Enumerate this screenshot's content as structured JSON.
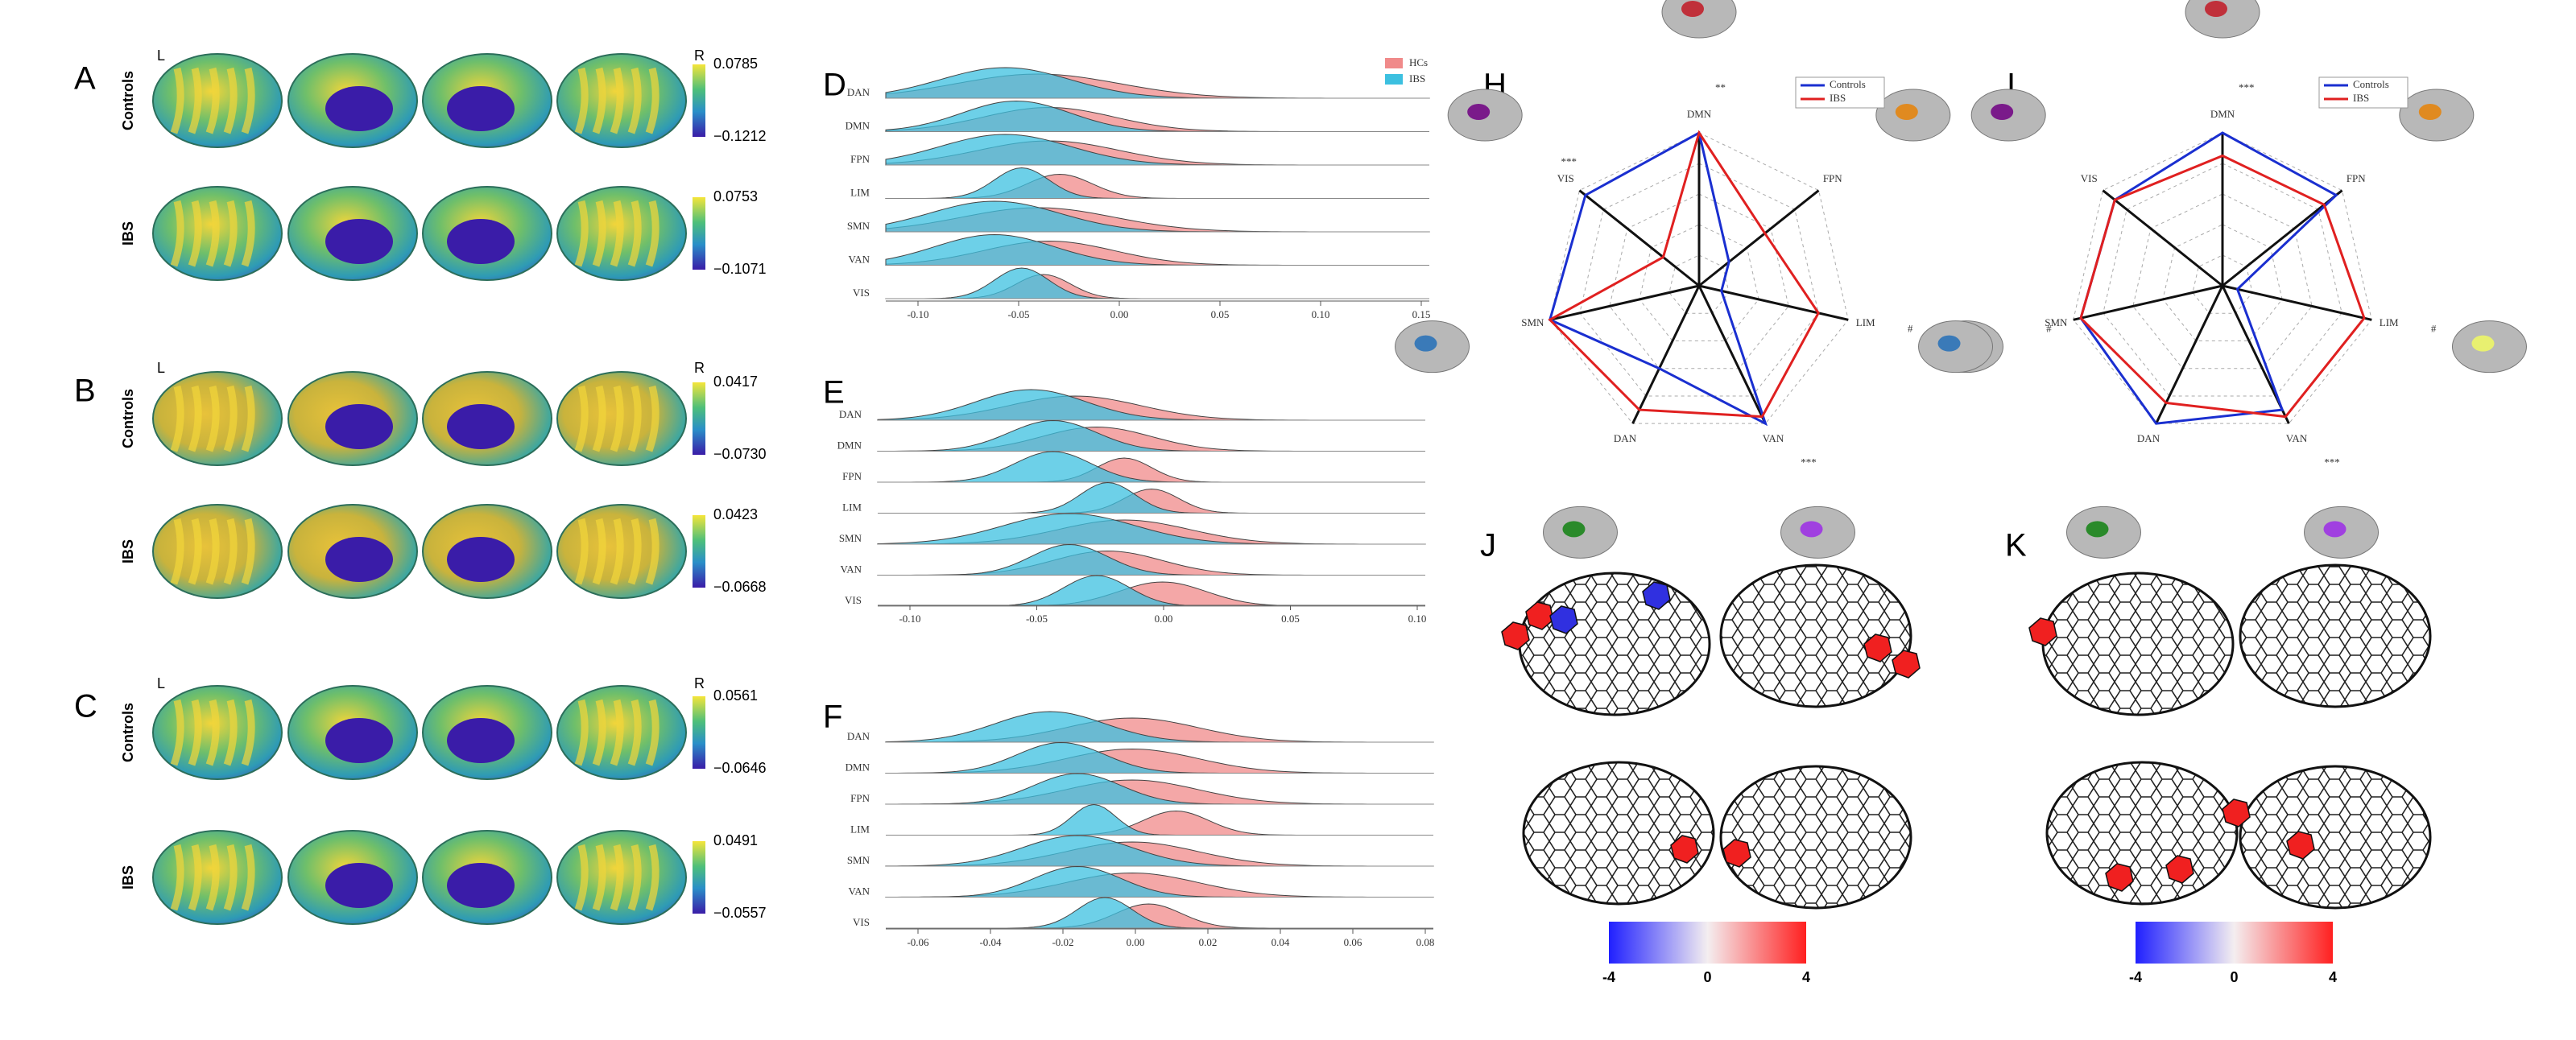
{
  "panels": {
    "A": {
      "label": "A",
      "left": "L",
      "right": "R",
      "rows": [
        {
          "name": "Controls",
          "max": "0.0785",
          "min": "−0.1212"
        },
        {
          "name": "IBS",
          "max": "0.0753",
          "min": "−0.1071"
        }
      ]
    },
    "B": {
      "label": "B",
      "left": "L",
      "right": "R",
      "rows": [
        {
          "name": "Controls",
          "max": "0.0417",
          "min": "−0.0730"
        },
        {
          "name": "IBS",
          "max": "0.0423",
          "min": "−0.0668"
        }
      ]
    },
    "C": {
      "label": "C",
      "left": "L",
      "right": "R",
      "rows": [
        {
          "name": "Controls",
          "max": "0.0561",
          "min": "−0.0646"
        },
        {
          "name": "IBS",
          "max": "0.0491",
          "min": "−0.0557"
        }
      ]
    },
    "D": {
      "label": "D",
      "networks": [
        "DAN",
        "DMN",
        "FPN",
        "LIM",
        "SMN",
        "VAN",
        "VIS"
      ],
      "legend": [
        "HCs",
        "IBS"
      ],
      "ticks": [
        "-0.10",
        "-0.05",
        "0.00",
        "0.05",
        "0.10",
        "0.15"
      ]
    },
    "E": {
      "label": "E",
      "networks": [
        "DAN",
        "DMN",
        "FPN",
        "LIM",
        "SMN",
        "VAN",
        "VIS"
      ],
      "ticks": [
        "-0.10",
        "-0.05",
        "0.00",
        "0.05",
        "0.10"
      ]
    },
    "F": {
      "label": "F",
      "networks": [
        "DAN",
        "DMN",
        "FPN",
        "LIM",
        "SMN",
        "VAN",
        "VIS"
      ],
      "ticks": [
        "-0.06",
        "-0.04",
        "-0.02",
        "0.00",
        "0.02",
        "0.04",
        "0.06",
        "0.08"
      ]
    },
    "H": {
      "label": "H",
      "legend": [
        "Controls",
        "IBS"
      ],
      "axes": [
        "DMN",
        "FPN",
        "LIM",
        "VAN",
        "DAN",
        "SMN",
        "VIS"
      ],
      "marks": [
        "**",
        "",
        "#",
        "***",
        "",
        "",
        "***"
      ]
    },
    "I": {
      "label": "I",
      "legend": [
        "Controls",
        "IBS"
      ],
      "axes": [
        "DMN",
        "FPN",
        "LIM",
        "VAN",
        "DAN",
        "SMN",
        "VIS"
      ],
      "marks": [
        "***",
        "",
        "#",
        "***",
        "",
        "#",
        ""
      ]
    },
    "J": {
      "label": "J",
      "scale": [
        "-4",
        "0",
        "4"
      ]
    },
    "K": {
      "label": "K",
      "scale": [
        "-4",
        "0",
        "4"
      ]
    }
  }
}
